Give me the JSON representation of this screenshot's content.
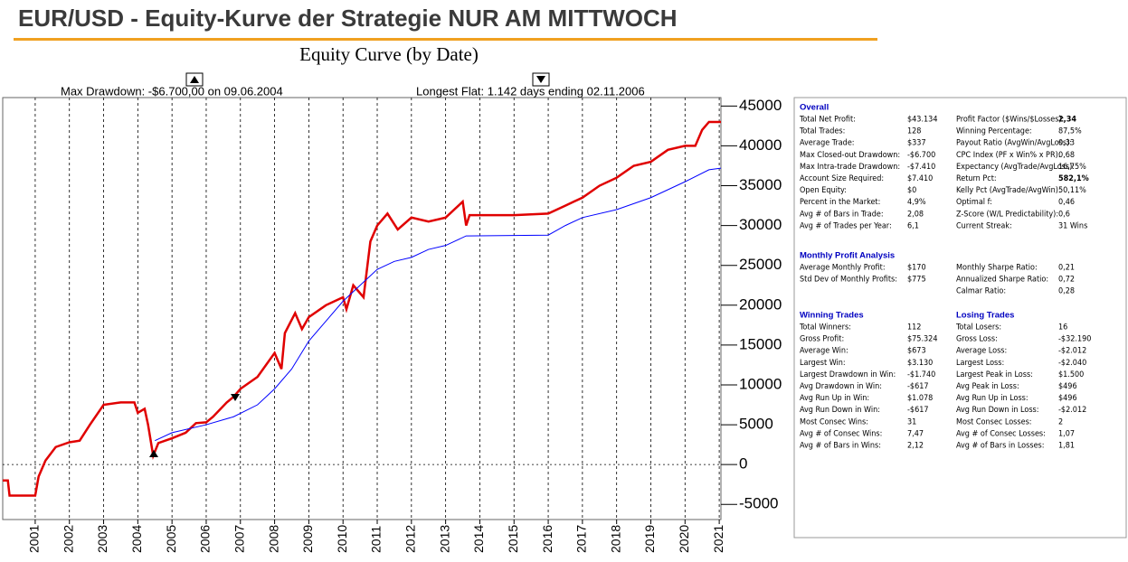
{
  "header": {
    "title": "EUR/USD -  Equity-Kurve der Strategie NUR AM MITTWOCH"
  },
  "chart_data": {
    "type": "line",
    "title": "Equity Curve (by Date)",
    "annotations": [
      "Max Drawdown: -$6.700,00 on 09.06.2004",
      "Longest Flat: 1.142 days ending 02.11.2006"
    ],
    "xlim": [
      2000.05,
      2021.05
    ],
    "xticks": [
      2001,
      2002,
      2003,
      2004,
      2005,
      2006,
      2007,
      2008,
      2009,
      2010,
      2011,
      2012,
      2013,
      2014,
      2015,
      2016,
      2017,
      2018,
      2019,
      2020,
      2021
    ],
    "ylim": [
      -6900,
      46400
    ],
    "yticks": [
      -5000,
      0,
      5000,
      10000,
      15000,
      20000,
      25000,
      30000,
      35000,
      40000,
      45000
    ],
    "grid": true,
    "series": [
      {
        "color": "#e00000",
        "x": [
          2000.05,
          2000.2,
          2000.25,
          2001.0,
          2001.1,
          2001.3,
          2001.6,
          2002.0,
          2002.3,
          2002.6,
          2003.0,
          2003.5,
          2003.9,
          2004.0,
          2004.2,
          2004.3,
          2004.45,
          2004.6,
          2005.0,
          2005.4,
          2005.7,
          2006.0,
          2006.2,
          2006.6,
          2006.8,
          2007.0,
          2007.5,
          2008.0,
          2008.2,
          2008.3,
          2008.6,
          2008.8,
          2009.0,
          2009.5,
          2010.0,
          2010.1,
          2010.3,
          2010.6,
          2010.8,
          2011.0,
          2011.3,
          2011.6,
          2012.0,
          2012.5,
          2013.0,
          2013.5,
          2013.6,
          2013.7,
          2015.0,
          2016.0,
          2016.5,
          2017.0,
          2017.5,
          2018.0,
          2018.5,
          2019.0,
          2019.5,
          2020.0,
          2020.3,
          2020.5,
          2020.7,
          2021.05
        ],
        "values": [
          -2000,
          -2000,
          -3900,
          -3900,
          -1500,
          500,
          2200,
          2800,
          3000,
          5000,
          7500,
          7800,
          7800,
          6500,
          7000,
          5000,
          1100,
          2700,
          3300,
          4000,
          5200,
          5300,
          6000,
          7800,
          8500,
          9500,
          11000,
          14000,
          12000,
          16500,
          19000,
          17000,
          18500,
          20000,
          21000,
          19500,
          22500,
          21000,
          28000,
          30000,
          31500,
          29500,
          31000,
          30500,
          31000,
          33000,
          30000,
          31300,
          31300,
          31500,
          32500,
          33500,
          35000,
          36000,
          37500,
          38000,
          39500,
          40000,
          40000,
          42000,
          43000,
          43000
        ]
      },
      {
        "color": "#0000ff",
        "x": [
          2004.5,
          2005.0,
          2006.0,
          2006.8,
          2007.5,
          2008.0,
          2008.5,
          2009.0,
          2009.5,
          2010.0,
          2010.5,
          2011.0,
          2011.5,
          2012.0,
          2012.5,
          2013.0,
          2013.6,
          2016.0,
          2016.5,
          2017.0,
          2018.0,
          2019.0,
          2020.0,
          2020.7,
          2021.05
        ],
        "values": [
          3000,
          4000,
          5000,
          6000,
          7500,
          9500,
          12000,
          15500,
          18000,
          20500,
          22500,
          24500,
          25500,
          26000,
          27000,
          27500,
          28700,
          28800,
          30000,
          31000,
          32000,
          33500,
          35500,
          37000,
          37200
        ]
      }
    ]
  },
  "stats": {
    "sections": [
      {
        "headings": [
          "Overall",
          null
        ],
        "rows": [
          [
            "Total Net Profit:",
            "$43.134",
            "Profit Factor ($Wins/$Losses):",
            "2,34"
          ],
          [
            "Total Trades:",
            "128",
            "Winning Percentage:",
            "87,5%"
          ],
          [
            "Average Trade:",
            "$337",
            "Payout Ratio (AvgWin/AvgLoss):",
            "0,33"
          ],
          [
            "Max Closed-out Drawdown:",
            "-$6.700",
            "CPC Index (PF x Win% x PR):",
            "0,68"
          ],
          [
            "Max Intra-trade Drawdown:",
            "-$7.410",
            "Expectancy (AvgTrade/AvgLoss):",
            "16,75%"
          ],
          [
            "Account Size Required:",
            "$7.410",
            "Return Pct:",
            "582,1%"
          ],
          [
            "Open Equity:",
            "$0",
            "Kelly Pct (AvgTrade/AvgWin):",
            "50,11%"
          ],
          [
            "Percent in the Market:",
            "4,9%",
            "Optimal f:",
            "0,46"
          ],
          [
            "Avg # of Bars in Trade:",
            "2,08",
            "Z-Score (W/L Predictability):",
            "0,6"
          ],
          [
            "Avg # of Trades per Year:",
            "6,1",
            "Current Streak:",
            "31 Wins"
          ]
        ]
      },
      {
        "headings": [
          "Monthly Profit Analysis",
          null
        ],
        "rows": [
          [
            "Average Monthly Profit:",
            "$170",
            "Monthly Sharpe Ratio:",
            "0,21"
          ],
          [
            "Std Dev of Monthly Profits:",
            "$775",
            "Annualized Sharpe Ratio:",
            "0,72"
          ],
          [
            null,
            null,
            "Calmar Ratio:",
            "0,28"
          ]
        ]
      },
      {
        "headings": [
          "Winning Trades",
          "Losing Trades"
        ],
        "rows": [
          [
            "Total Winners:",
            "112",
            "Total Losers:",
            "16"
          ],
          [
            "Gross Profit:",
            "$75.324",
            "Gross Loss:",
            "-$32.190"
          ],
          [
            "Average Win:",
            "$673",
            "Average Loss:",
            "-$2.012"
          ],
          [
            "Largest Win:",
            "$3.130",
            "Largest Loss:",
            "-$2.040"
          ],
          [
            "Largest Drawdown in Win:",
            "-$1.740",
            "Largest Peak in Loss:",
            "$1.500"
          ],
          [
            "Avg Drawdown in Win:",
            "-$617",
            "Avg Peak in Loss:",
            "$496"
          ],
          [
            "Avg Run Up in Win:",
            "$1.078",
            "Avg Run Up in Loss:",
            "$496"
          ],
          [
            "Avg Run Down in Win:",
            "-$617",
            "Avg Run Down in Loss:",
            "-$2.012"
          ],
          [
            "Most Consec Wins:",
            "31",
            "Most Consec Losses:",
            "2"
          ],
          [
            "Avg # of Consec Wins:",
            "7,47",
            "Avg # of Consec Losses:",
            "1,07"
          ],
          [
            "Avg # of Bars in Wins:",
            "2,12",
            "Avg # of Bars in Losses:",
            "1,81"
          ]
        ]
      }
    ]
  }
}
